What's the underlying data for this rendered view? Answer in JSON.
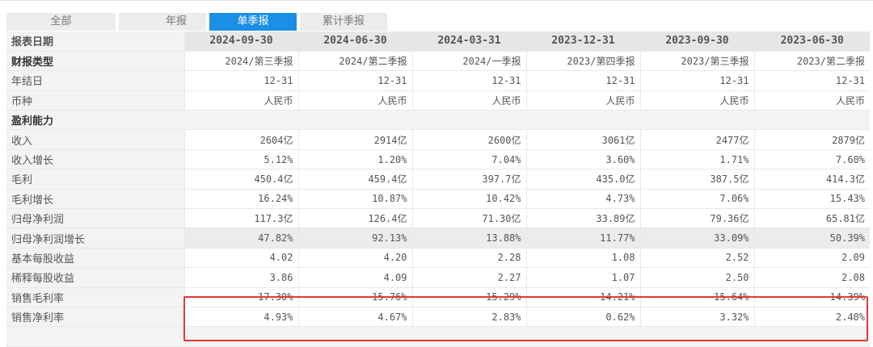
{
  "tabs": [
    {
      "label": "全部",
      "active": false
    },
    {
      "label": "年报",
      "active": false
    },
    {
      "label": "单季报",
      "active": true
    },
    {
      "label": "累计季报",
      "active": false
    }
  ],
  "table": {
    "header": {
      "label": "报表日期",
      "values": [
        "2024-09-30",
        "2024-06-30",
        "2024-03-31",
        "2023-12-31",
        "2023-09-30",
        "2023-06-30"
      ]
    },
    "rows": [
      {
        "label": "财报类型",
        "values": [
          "2024/第三季报",
          "2024/第二季报",
          "2024/一季报",
          "2023/第四季报",
          "2023/第三季报",
          "2023/第二季报"
        ]
      },
      {
        "label": "年结日",
        "values": [
          "12-31",
          "12-31",
          "12-31",
          "12-31",
          "12-31",
          "12-31"
        ]
      },
      {
        "label": "币种",
        "values": [
          "人民币",
          "人民币",
          "人民币",
          "人民币",
          "人民币",
          "人民币"
        ]
      },
      {
        "label": "盈利能力"
      },
      {
        "label": "收入",
        "values": [
          "2604亿",
          "2914亿",
          "2600亿",
          "3061亿",
          "2477亿",
          "2879亿"
        ]
      },
      {
        "label": "收入增长",
        "values": [
          "5.12%",
          "1.20%",
          "7.04%",
          "3.60%",
          "1.71%",
          "7.60%"
        ]
      },
      {
        "label": "毛利",
        "values": [
          "450.4亿",
          "459.4亿",
          "397.7亿",
          "435.0亿",
          "387.5亿",
          "414.3亿"
        ]
      },
      {
        "label": "毛利增长",
        "values": [
          "16.24%",
          "10.87%",
          "10.42%",
          "4.73%",
          "7.06%",
          "15.43%"
        ]
      },
      {
        "label": "归母净利润",
        "values": [
          "117.3亿",
          "126.4亿",
          "71.30亿",
          "33.89亿",
          "79.36亿",
          "65.81亿"
        ]
      },
      {
        "label": "归母净利润增长",
        "values": [
          "47.82%",
          "92.13%",
          "13.88%",
          "11.77%",
          "33.09%",
          "50.39%"
        ]
      },
      {
        "label": "基本每股收益",
        "values": [
          "4.02",
          "4.20",
          "2.28",
          "1.08",
          "2.52",
          "2.09"
        ]
      },
      {
        "label": "稀释每股收益",
        "values": [
          "3.86",
          "4.09",
          "2.27",
          "1.07",
          "2.50",
          "2.08"
        ]
      },
      {
        "label": "销售毛利率",
        "values": [
          "17.30%",
          "15.76%",
          "15.29%",
          "14.21%",
          "15.64%",
          "14.39%"
        ]
      },
      {
        "label": "销售净利率",
        "values": [
          "4.93%",
          "4.67%",
          "2.83%",
          "0.62%",
          "3.32%",
          "2.40%"
        ]
      }
    ]
  },
  "colors": {
    "active_tab": "#1a8fe6",
    "highlight_border": "#e13b31",
    "header_bg": "#e6e6e6",
    "label_bg": "#f3f3f3"
  }
}
